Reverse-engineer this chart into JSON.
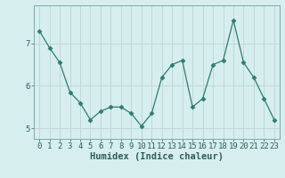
{
  "x": [
    0,
    1,
    2,
    3,
    4,
    5,
    6,
    7,
    8,
    9,
    10,
    11,
    12,
    13,
    14,
    15,
    16,
    17,
    18,
    19,
    20,
    21,
    22,
    23
  ],
  "y": [
    7.3,
    6.9,
    6.55,
    5.85,
    5.6,
    5.2,
    5.4,
    5.5,
    5.5,
    5.35,
    5.05,
    5.35,
    6.2,
    6.5,
    6.6,
    5.5,
    5.7,
    6.5,
    6.6,
    7.55,
    6.55,
    6.2,
    5.7,
    5.2
  ],
  "line_color": "#2e7d6e",
  "marker": "D",
  "marker_size": 2.5,
  "bg_color": "#d6eeee",
  "grid_color": "#c0d8d8",
  "xlabel": "Humidex (Indice chaleur)",
  "ylim": [
    4.75,
    7.9
  ],
  "yticks": [
    5,
    6,
    7
  ],
  "xtick_labels": [
    "0",
    "1",
    "2",
    "3",
    "4",
    "5",
    "6",
    "7",
    "8",
    "9",
    "10",
    "11",
    "12",
    "13",
    "14",
    "15",
    "16",
    "17",
    "18",
    "19",
    "20",
    "21",
    "22",
    "23"
  ],
  "font_color": "#2e5e5e",
  "xlabel_fontsize": 7.5,
  "tick_fontsize": 6.5,
  "spine_color": "#7aaaaa"
}
